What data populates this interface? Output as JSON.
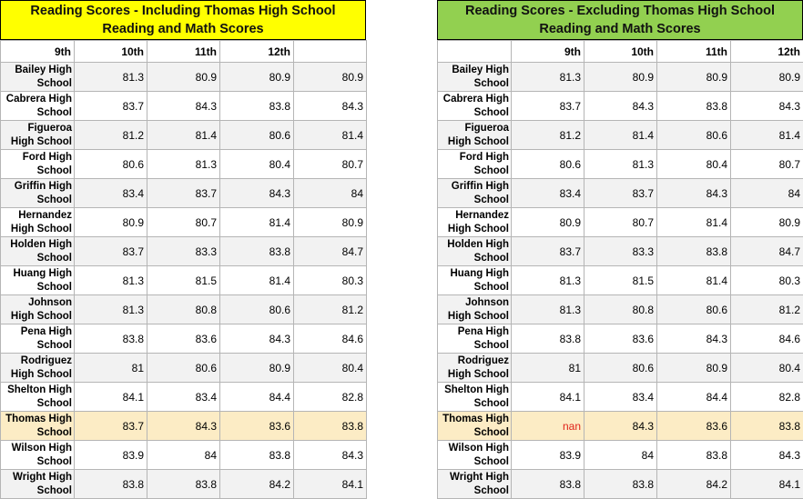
{
  "left": {
    "title_line1": "Reading Scores - Including Thomas High School",
    "title_line2": "Reading and Math Scores",
    "title_bg": "#ffff00",
    "headers": [
      "9th",
      "10th",
      "11th",
      "12th",
      ""
    ],
    "rows": [
      {
        "name": "Bailey High School",
        "v": [
          "81.3",
          "80.9",
          "80.9",
          "80.9"
        ]
      },
      {
        "name": "Cabrera High School",
        "v": [
          "83.7",
          "84.3",
          "83.8",
          "84.3"
        ]
      },
      {
        "name": "Figueroa High School",
        "v": [
          "81.2",
          "81.4",
          "80.6",
          "81.4"
        ]
      },
      {
        "name": "Ford High School",
        "v": [
          "80.6",
          "81.3",
          "80.4",
          "80.7"
        ]
      },
      {
        "name": "Griffin High School",
        "v": [
          "83.4",
          "83.7",
          "84.3",
          "84"
        ]
      },
      {
        "name": "Hernandez High School",
        "v": [
          "80.9",
          "80.7",
          "81.4",
          "80.9"
        ]
      },
      {
        "name": "Holden High School",
        "v": [
          "83.7",
          "83.3",
          "83.8",
          "84.7"
        ]
      },
      {
        "name": "Huang High School",
        "v": [
          "81.3",
          "81.5",
          "81.4",
          "80.3"
        ]
      },
      {
        "name": "Johnson High School",
        "v": [
          "81.3",
          "80.8",
          "80.6",
          "81.2"
        ]
      },
      {
        "name": "Pena High School",
        "v": [
          "83.8",
          "83.6",
          "84.3",
          "84.6"
        ]
      },
      {
        "name": "Rodriguez High School",
        "v": [
          "81",
          "80.6",
          "80.9",
          "80.4"
        ]
      },
      {
        "name": "Shelton High School",
        "v": [
          "84.1",
          "83.4",
          "84.4",
          "82.8"
        ]
      },
      {
        "name": "Thomas High School",
        "v": [
          "83.7",
          "84.3",
          "83.6",
          "83.8"
        ]
      },
      {
        "name": "Wilson High School",
        "v": [
          "83.9",
          "84",
          "83.8",
          "84.3"
        ]
      },
      {
        "name": "Wright High School",
        "v": [
          "83.8",
          "83.8",
          "84.2",
          "84.1"
        ]
      }
    ]
  },
  "right": {
    "title_line1": "Reading Scores - Excluding Thomas High School",
    "title_line2": "Reading and Math Scores",
    "title_bg": "#92d050",
    "headers": [
      "",
      "9th",
      "10th",
      "11th",
      "12th"
    ],
    "rows": [
      {
        "name": "Bailey High School",
        "v": [
          "81.3",
          "80.9",
          "80.9",
          "80.9"
        ]
      },
      {
        "name": "Cabrera High School",
        "v": [
          "83.7",
          "84.3",
          "83.8",
          "84.3"
        ]
      },
      {
        "name": "Figueroa High School",
        "v": [
          "81.2",
          "81.4",
          "80.6",
          "81.4"
        ]
      },
      {
        "name": "Ford High School",
        "v": [
          "80.6",
          "81.3",
          "80.4",
          "80.7"
        ]
      },
      {
        "name": "Griffin High School",
        "v": [
          "83.4",
          "83.7",
          "84.3",
          "84"
        ]
      },
      {
        "name": "Hernandez High School",
        "v": [
          "80.9",
          "80.7",
          "81.4",
          "80.9"
        ]
      },
      {
        "name": "Holden High School",
        "v": [
          "83.7",
          "83.3",
          "83.8",
          "84.7"
        ]
      },
      {
        "name": "Huang High School",
        "v": [
          "81.3",
          "81.5",
          "81.4",
          "80.3"
        ]
      },
      {
        "name": "Johnson High School",
        "v": [
          "81.3",
          "80.8",
          "80.6",
          "81.2"
        ]
      },
      {
        "name": "Pena High School",
        "v": [
          "83.8",
          "83.6",
          "84.3",
          "84.6"
        ]
      },
      {
        "name": "Rodriguez High School",
        "v": [
          "81",
          "80.6",
          "80.9",
          "80.4"
        ]
      },
      {
        "name": "Shelton High School",
        "v": [
          "84.1",
          "83.4",
          "84.4",
          "82.8"
        ]
      },
      {
        "name": "Thomas High School",
        "v": [
          "nan",
          "84.3",
          "83.6",
          "83.8"
        ]
      },
      {
        "name": "Wilson High School",
        "v": [
          "83.9",
          "84",
          "83.8",
          "84.3"
        ]
      },
      {
        "name": "Wright High School",
        "v": [
          "83.8",
          "83.8",
          "84.2",
          "84.1"
        ]
      }
    ]
  },
  "highlight_row": "Thomas High School",
  "colors": {
    "highlight": "#fcecc5",
    "stripe": "#f2f2f2",
    "nan": "#e0231a"
  }
}
